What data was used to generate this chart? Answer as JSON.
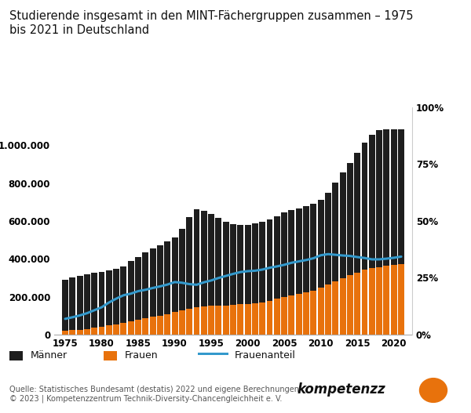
{
  "title": "Studierende insgesamt in den MINT-Fächergruppen zusammen – 1975\nbis 2021 in Deutschland",
  "years": [
    1975,
    1976,
    1977,
    1978,
    1979,
    1980,
    1981,
    1982,
    1983,
    1984,
    1985,
    1986,
    1987,
    1988,
    1989,
    1990,
    1991,
    1992,
    1993,
    1994,
    1995,
    1996,
    1997,
    1998,
    1999,
    2000,
    2001,
    2002,
    2003,
    2004,
    2005,
    2006,
    2007,
    2008,
    2009,
    2010,
    2011,
    2012,
    2013,
    2014,
    2015,
    2016,
    2017,
    2018,
    2019,
    2020,
    2021
  ],
  "frauen": [
    20000,
    23000,
    26000,
    30000,
    35000,
    40000,
    48000,
    55000,
    62000,
    70000,
    78000,
    86000,
    93000,
    100000,
    108000,
    118000,
    128000,
    138000,
    145000,
    150000,
    152000,
    153000,
    154000,
    156000,
    159000,
    162000,
    165000,
    170000,
    178000,
    188000,
    198000,
    208000,
    215000,
    222000,
    232000,
    248000,
    265000,
    282000,
    298000,
    313000,
    327000,
    342000,
    350000,
    357000,
    362000,
    367000,
    372000
  ],
  "maenner": [
    270000,
    278000,
    283000,
    288000,
    290000,
    292000,
    292000,
    293000,
    296000,
    318000,
    330000,
    350000,
    360000,
    372000,
    383000,
    393000,
    432000,
    482000,
    518000,
    502000,
    487000,
    462000,
    442000,
    428000,
    420000,
    418000,
    422000,
    425000,
    428000,
    438000,
    447000,
    450000,
    452000,
    455000,
    458000,
    462000,
    484000,
    522000,
    558000,
    592000,
    632000,
    672000,
    707000,
    722000,
    722000,
    717000,
    712000
  ],
  "frauenanteil": [
    0.069,
    0.076,
    0.084,
    0.094,
    0.107,
    0.12,
    0.141,
    0.158,
    0.173,
    0.18,
    0.191,
    0.197,
    0.205,
    0.212,
    0.22,
    0.231,
    0.228,
    0.222,
    0.219,
    0.23,
    0.238,
    0.249,
    0.258,
    0.267,
    0.275,
    0.279,
    0.281,
    0.286,
    0.294,
    0.3,
    0.307,
    0.316,
    0.322,
    0.328,
    0.336,
    0.349,
    0.354,
    0.351,
    0.348,
    0.346,
    0.341,
    0.337,
    0.331,
    0.331,
    0.334,
    0.338,
    0.343
  ],
  "maenner_color": "#1e1e1e",
  "frauen_color": "#e8720c",
  "frauenanteil_color": "#3399cc",
  "background_color": "#ffffff",
  "ylim_left": [
    0,
    1200000
  ],
  "ylim_right": [
    0,
    1.0
  ],
  "yticks_left": [
    0,
    200000,
    400000,
    600000,
    800000,
    1000000
  ],
  "ytick_labels_left": [
    "0",
    "200.000",
    "400.000",
    "600.000",
    "800.000",
    "1.000.000"
  ],
  "yticks_right": [
    0.0,
    0.25,
    0.5,
    0.75,
    1.0
  ],
  "ytick_labels_right": [
    "0%",
    "25%",
    "50%",
    "75%",
    "100%"
  ],
  "xticks": [
    1975,
    1980,
    1985,
    1990,
    1995,
    2000,
    2005,
    2010,
    2015,
    2020
  ],
  "legend_labels": [
    "Männer",
    "Frauen",
    "Frauenanteil"
  ],
  "source_text": "Quelle: Statistisches Bundesamt (destatis) 2022 und eigene Berechnungen\n© 2023 | Kompetenzzentrum Technik-Diversity-Chancengleichheit e. V.",
  "bar_width": 0.85,
  "title_fontsize": 10.5,
  "tick_fontsize": 8.5,
  "legend_fontsize": 9,
  "source_fontsize": 7
}
